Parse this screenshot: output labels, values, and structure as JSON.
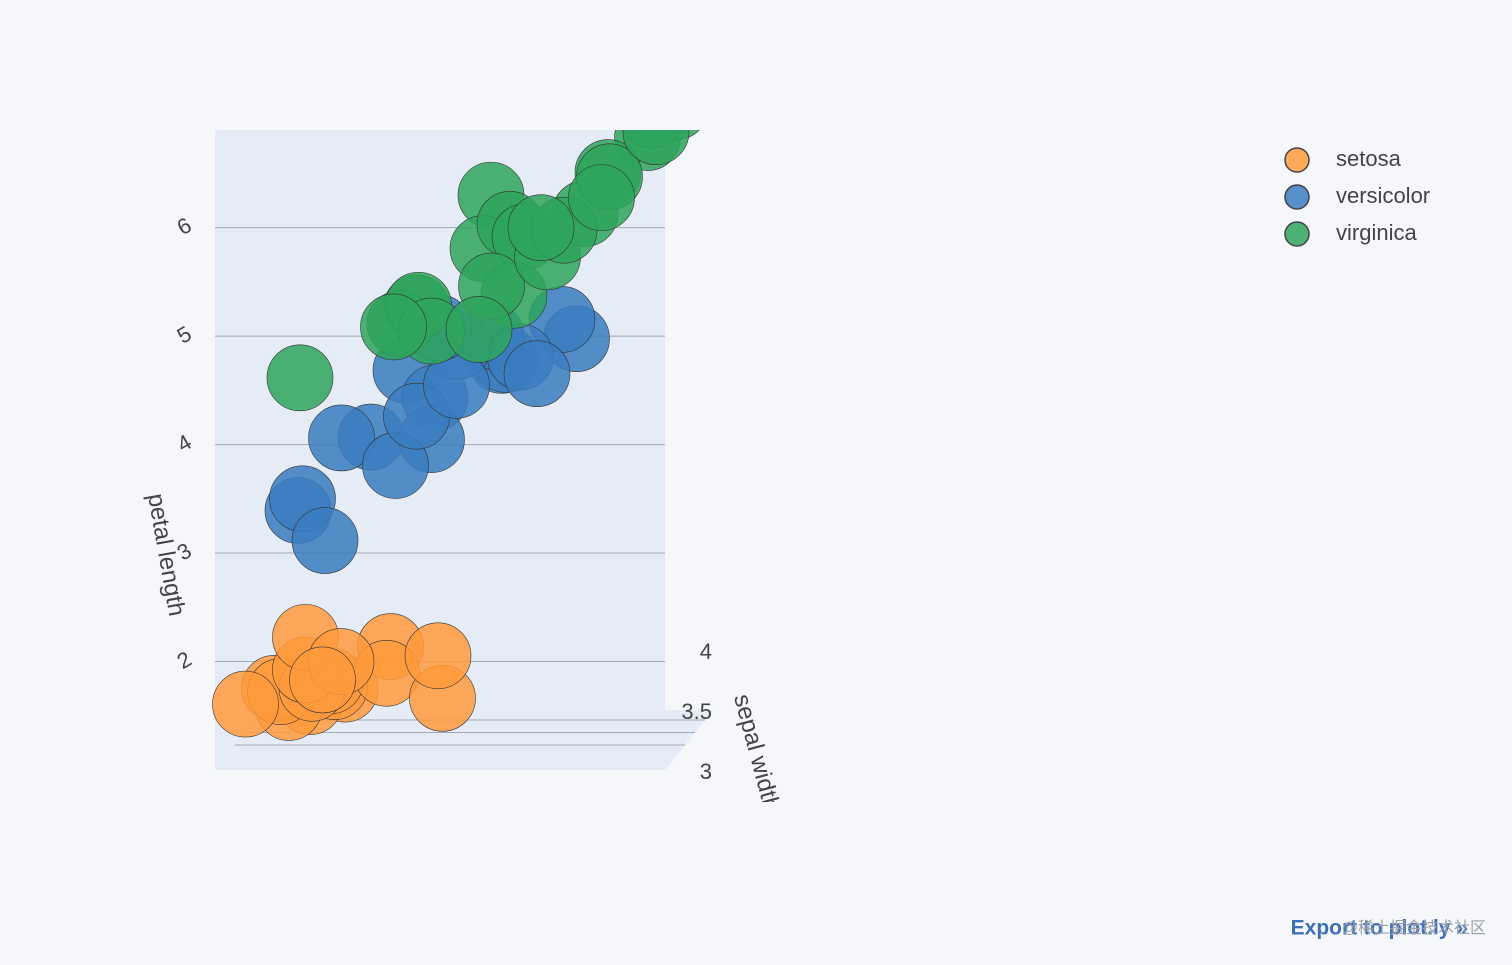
{
  "chart_data": {
    "type": "scatter3d",
    "zaxis_title": "petal length",
    "yaxis_title": "sepal width",
    "xlim": [
      4.3,
      7.9
    ],
    "ylim": [
      2.0,
      4.4
    ],
    "zlim": [
      1.0,
      6.9
    ],
    "yticks": [
      3,
      3.5,
      4
    ],
    "zticks": [
      2,
      3,
      4,
      5,
      6
    ],
    "series": [
      {
        "name": "setosa",
        "color": "#ff9a3c",
        "x": [
          5.1,
          4.9,
          4.7,
          4.6,
          5.0,
          5.4,
          4.6,
          5.0,
          4.4,
          4.9,
          5.4,
          4.8,
          5.8,
          5.7,
          4.8,
          5.1,
          5.0
        ],
        "y": [
          3.5,
          3.0,
          3.2,
          3.1,
          3.6,
          3.9,
          3.4,
          3.4,
          2.9,
          3.1,
          3.7,
          3.4,
          4.0,
          4.4,
          3.4,
          3.3,
          3.0
        ],
        "z": [
          1.4,
          1.4,
          1.3,
          1.5,
          1.4,
          1.7,
          1.4,
          1.5,
          1.4,
          1.5,
          1.5,
          1.6,
          1.2,
          1.5,
          1.9,
          1.7,
          1.6
        ]
      },
      {
        "name": "versicolor",
        "color": "#3a7dc0",
        "x": [
          7.0,
          6.4,
          6.9,
          5.5,
          6.5,
          5.7,
          6.3,
          4.9,
          6.6,
          5.2,
          5.0,
          5.9,
          6.0,
          6.1,
          5.6,
          6.7,
          5.8,
          6.2,
          5.1,
          5.9
        ],
        "y": [
          3.2,
          3.2,
          3.1,
          2.3,
          2.8,
          2.8,
          3.3,
          2.4,
          2.9,
          2.7,
          2.0,
          3.0,
          2.2,
          2.9,
          2.9,
          3.1,
          2.7,
          2.2,
          2.5,
          3.2
        ],
        "z": [
          4.7,
          4.5,
          4.9,
          4.0,
          4.6,
          4.5,
          4.7,
          3.3,
          4.6,
          3.9,
          3.5,
          4.2,
          4.0,
          4.7,
          3.6,
          4.4,
          4.1,
          4.5,
          3.0,
          4.8
        ]
      },
      {
        "name": "virginica",
        "color": "#2ea45c",
        "x": [
          6.3,
          5.8,
          7.1,
          6.3,
          6.5,
          7.6,
          4.9,
          7.3,
          6.7,
          7.2,
          6.5,
          6.4,
          6.8,
          5.7,
          5.8,
          7.7,
          7.7,
          6.0,
          6.9,
          5.6,
          7.7,
          6.3,
          6.7,
          7.2
        ],
        "y": [
          3.3,
          2.7,
          3.0,
          2.9,
          3.0,
          3.0,
          2.5,
          2.9,
          2.5,
          3.6,
          3.2,
          2.7,
          3.0,
          2.5,
          2.8,
          3.8,
          2.6,
          2.2,
          3.2,
          2.8,
          2.8,
          2.7,
          3.3,
          3.2
        ],
        "z": [
          6.0,
          5.1,
          5.9,
          5.6,
          5.8,
          6.6,
          4.5,
          6.3,
          5.8,
          6.1,
          5.1,
          5.3,
          5.5,
          5.0,
          5.1,
          6.7,
          6.9,
          5.0,
          5.7,
          4.9,
          6.7,
          4.9,
          5.7,
          6.0
        ]
      }
    ]
  },
  "export_link": "Export to plot.ly »",
  "watermark": "@稀土掘金技术社区"
}
